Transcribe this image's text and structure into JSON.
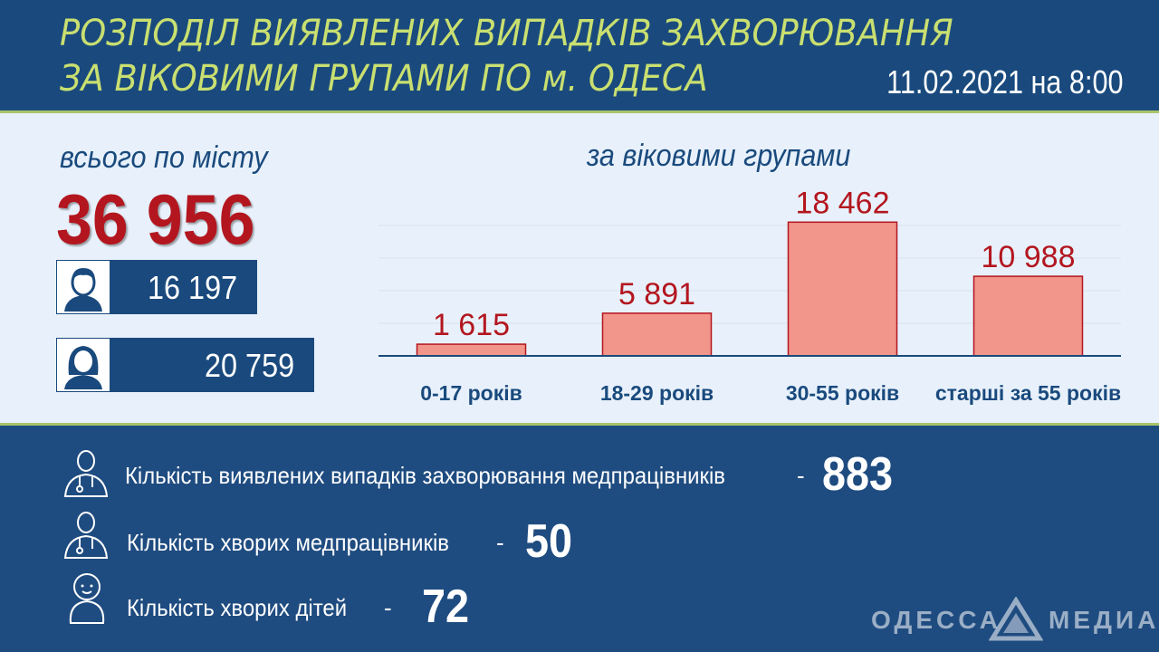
{
  "header": {
    "title_line1": "РОЗПОДІЛ ВИЯВЛЕНИХ ВИПАДКІВ ЗАХВОРЮВАННЯ",
    "title_line2": "ЗА ВІКОВИМИ ГРУПАМИ ПО м. ОДЕСА",
    "date": "11.02.2021 на 8:00"
  },
  "totals": {
    "label": "всього по місту",
    "value": "36 956",
    "male": {
      "icon": "man-icon",
      "value": "16 197"
    },
    "female": {
      "icon": "woman-icon",
      "value": "20 759"
    }
  },
  "chart_data": {
    "type": "bar",
    "title": "за віковими групами",
    "categories": [
      "0-17 років",
      "18-29 років",
      "30-55 років",
      "старші за 55 років"
    ],
    "values": [
      1615,
      5891,
      18462,
      10988
    ],
    "value_labels": [
      "1 615",
      "5 891",
      "18 462",
      "10 988"
    ],
    "bar_color": "#f2958a",
    "bar_border": "#b3161f",
    "label_color": "#b3161f",
    "grid": true,
    "ylim": [
      0,
      20000
    ]
  },
  "stats": [
    {
      "icon": "doctor-icon",
      "label": "Кількість виявлених випадків захворювання медпрацівників",
      "dash": "-",
      "value": "883"
    },
    {
      "icon": "doctor-icon",
      "label": "Кількість хворих медпрацівників",
      "dash": "-",
      "value": "50"
    },
    {
      "icon": "baby-icon",
      "label": "Кількість хворих дітей",
      "dash": "-",
      "value": "72"
    }
  ],
  "logo": {
    "left": "ОДЕССА",
    "right": "МЕДИА"
  },
  "colors": {
    "header_bg": "#1a4a7d",
    "title": "#c9df70",
    "accent_line": "#a8c46a",
    "panel_bg": "#e8f1fb",
    "total_red": "#b3161f",
    "bottom_bg": "#1f4c80"
  }
}
